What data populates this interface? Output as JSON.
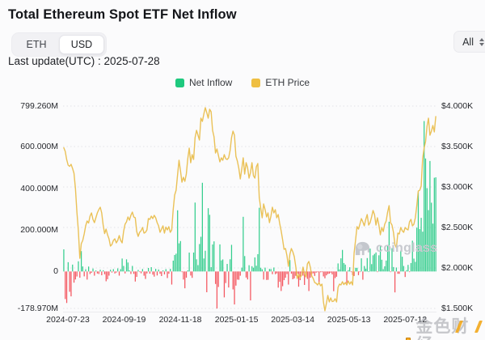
{
  "header": {
    "title": "Total Ethereum Spot ETF Net Inflow",
    "currency_toggle": {
      "options": [
        "ETH",
        "USD"
      ],
      "selected": "USD"
    },
    "range_select": {
      "value": "All"
    },
    "last_update": "Last update(UTC) : 2025-07-28"
  },
  "legend": [
    {
      "label": "Net Inflow",
      "color": "#1EC97E"
    },
    {
      "label": "ETH Price",
      "color": "#EFBF42"
    }
  ],
  "watermarks": {
    "coinglass": "coinglass",
    "golden_finance": "金色财经"
  },
  "chart_data": {
    "type": "bar+line",
    "title": "Total Ethereum Spot ETF Net Inflow",
    "x_start_date": "2024-07-23",
    "x_end_date": "2025-07-28",
    "grid": "horizontal-dotted",
    "legend_position": "top-center",
    "left_axis": {
      "unit": "USD millions",
      "max": 799.26,
      "min": -178.97,
      "ticks": [
        {
          "label": "799.260M",
          "value": 799.26
        },
        {
          "label": "600.000M",
          "value": 600
        },
        {
          "label": "400.000M",
          "value": 400
        },
        {
          "label": "200.000M",
          "value": 200
        },
        {
          "label": "0",
          "value": 0
        },
        {
          "label": "-178.970M",
          "value": -178.97
        }
      ]
    },
    "right_axis": {
      "unit": "USD",
      "max": 4000,
      "min": 1500,
      "ticks": [
        {
          "label": "$4.000K",
          "value": 4000
        },
        {
          "label": "$3.500K",
          "value": 3500
        },
        {
          "label": "$3.000K",
          "value": 3000
        },
        {
          "label": "$2.500K",
          "value": 2500
        },
        {
          "label": "$2.000K",
          "value": 2000
        },
        {
          "label": "$1.500K",
          "value": 1500
        }
      ]
    },
    "x_ticks": [
      {
        "label": "2024-07-23",
        "pos": 0.013
      },
      {
        "label": "2024-09-19",
        "pos": 0.1635
      },
      {
        "label": "2024-11-18",
        "pos": 0.314
      },
      {
        "label": "2025-01-15",
        "pos": 0.4645
      },
      {
        "label": "2025-03-14",
        "pos": 0.615
      },
      {
        "label": "2025-05-13",
        "pos": 0.7655
      },
      {
        "label": "2025-07-12",
        "pos": 0.916
      }
    ],
    "series": [
      {
        "name": "Net Inflow",
        "type": "bar",
        "unit": "USD M",
        "color_pos": "#35CE8E",
        "color_neg": "#F4555E",
        "values": [
          106.8,
          -133.3,
          -152.3,
          44.8,
          -98.3,
          -120.3,
          33.2,
          -54.0,
          -38.7,
          -24.3,
          49.1,
          -30.2,
          98.4,
          24.3,
          -23.7,
          10.8,
          -39.2,
          23.8,
          -12.4,
          -6.5,
          14.3,
          -20.3,
          4.7,
          -9.6,
          -12.2,
          8.4,
          -18.3,
          5.9,
          -13.5,
          -47.4,
          -37.5,
          -20.1,
          8.6,
          -5.2,
          11.4,
          -9.7,
          -5.4,
          15.1,
          -20.1,
          11.2,
          62.5,
          26.8,
          -9.4,
          58.7,
          43.2,
          5.8,
          -12.1,
          26.9,
          -11.6,
          -48.6,
          -26.2,
          7.4,
          -3.2,
          -8.7,
          11.8,
          -20.4,
          -36.1,
          -9.3,
          17.1,
          -10.5,
          20.8,
          -15.3,
          -24.9,
          12.7,
          -19.4,
          9.6,
          -10.9,
          -22.1,
          5.4,
          -14.2,
          11.3,
          -31.8,
          -10.9,
          12.6,
          -63.3,
          52.3,
          79.7,
          85.9,
          295.5,
          135.9,
          146.9,
          -3.2,
          -39.1,
          -81.3,
          -30.2,
          5.2,
          91.2,
          -19.7,
          -30.8,
          91.4,
          332.9,
          58.8,
          30.7,
          132.7,
          167.7,
          428.5,
          62.7,
          100.2,
          -100.4,
          305.7,
          273.7,
          20.9,
          130.4,
          145.4,
          -60.5,
          -178.97,
          -75.1,
          130.8,
          53.6,
          58.1,
          -125.2,
          -56.1,
          36.4,
          -77.5,
          58.9,
          128.7,
          -86.8,
          -159.4,
          -68.4,
          -39.4,
          -40.2,
          -20.5,
          18.6,
          264.1,
          74.4,
          -29.2,
          -38.4,
          30.2,
          -139.8,
          25.5,
          18.3,
          67.8,
          27.8,
          83.6,
          307.8,
          18.1,
          10.7,
          -39.2,
          18.6,
          -40.9,
          -40.4,
          12.1,
          11.7,
          -13.1,
          19.2,
          -13.1,
          -8.9,
          -78.1,
          -50.1,
          -94.3,
          -71.2,
          -41.9,
          -30.3,
          -12.5,
          -63.3,
          55.3,
          -10.4,
          -37.6,
          -33.5,
          -21.1,
          -10.3,
          -73.6,
          -41.9,
          -9.2,
          -20.1,
          -65.1,
          -12.3,
          -35.9,
          -94.5,
          -30.2,
          -12.1,
          -8.7,
          -21.6,
          -6.0,
          -3.6,
          -51.3,
          -3.7,
          -2.1,
          -23.9,
          -32.9,
          -18.8,
          -12.2,
          -10.4,
          -6.1,
          -14.2,
          -95.4,
          -32.1,
          -25.4,
          38.8,
          10.2,
          63.5,
          104.1,
          40.7,
          33.2,
          -56.4,
          6.5,
          20.4,
          -2.3,
          -17.7,
          -21.8,
          17.6,
          17.6,
          -17.6,
          -2.5,
          63.5,
          -39.8,
          26.5,
          13.5,
          64.8,
          0.3,
          110.5,
          35.4,
          78.2,
          84.9,
          91.9,
          -2.9,
          78.2,
          125.0,
          56.8,
          11.3,
          25.3,
          52.7,
          124.1,
          240.3,
          -2.1,
          112.3,
          21.4,
          -101.1,
          19.1,
          -11.1,
          -11.3,
          100.7,
          71.3,
          26.4,
          -26.7,
          6.6,
          31.8,
          -1.8,
          40.7,
          148.6,
          62.1,
          46.6,
          211.3,
          383.1,
          204.8,
          259.0,
          192.3,
          726.7,
          546.0,
          402.5,
          296.6,
          533.8,
          332.2,
          231.2,
          452.7,
          455.0
        ]
      },
      {
        "name": "ETH Price",
        "type": "line",
        "unit": "USD",
        "color": "#EAC157",
        "values": [
          3485,
          3440,
          3338,
          3270,
          3255,
          3280,
          3230,
          3170,
          2980,
          2690,
          2460,
          2119,
          2300,
          2340,
          2420,
          2520,
          2580,
          2555,
          2640,
          2680,
          2600,
          2560,
          2620,
          2680,
          2720,
          2750,
          2680,
          2530,
          2425,
          2480,
          2410,
          2360,
          2270,
          2290,
          2340,
          2360,
          2310,
          2340,
          2400,
          2340,
          2310,
          2450,
          2540,
          2570,
          2630,
          2590,
          2650,
          2690,
          2630,
          2620,
          2450,
          2390,
          2440,
          2460,
          2500,
          2430,
          2440,
          2470,
          2610,
          2600,
          2640,
          2610,
          2650,
          2620,
          2560,
          2520,
          2440,
          2480,
          2520,
          2430,
          2505,
          2470,
          2510,
          2440,
          2470,
          2720,
          2900,
          2960,
          3150,
          3330,
          3200,
          3060,
          3120,
          3070,
          3160,
          3350,
          3480,
          3300,
          3400,
          3340,
          3610,
          3700,
          3640,
          3580,
          3850,
          3810,
          3900,
          3980,
          3920,
          3850,
          3960,
          3930,
          3700,
          3620,
          3420,
          3470,
          3390,
          3310,
          3360,
          3330,
          3400,
          3350,
          3340,
          3360,
          3450,
          3610,
          3690,
          3640,
          3380,
          3320,
          3230,
          3100,
          3220,
          3360,
          3160,
          3300,
          3240,
          3110,
          3180,
          3300,
          3140,
          3110,
          3250,
          3290,
          2870,
          2740,
          2620,
          2790,
          2720,
          2630,
          2680,
          2560,
          2640,
          2750,
          2680,
          2720,
          2620,
          2660,
          2550,
          2460,
          2350,
          2230,
          2240,
          2150,
          2020,
          2170,
          2240,
          2200,
          2140,
          2020,
          1870,
          1920,
          1880,
          1910,
          2010,
          1930,
          1890,
          2050,
          2080,
          2010,
          1900,
          1870,
          1820,
          1810,
          1790,
          1820,
          1780,
          1800,
          1580,
          1471,
          1560,
          1660,
          1580,
          1630,
          1585,
          1590,
          1620,
          1580,
          1760,
          1800,
          1790,
          1830,
          1795,
          1820,
          1790,
          1840,
          1800,
          1830,
          1790,
          2180,
          2340,
          2510,
          2480,
          2540,
          2610,
          2570,
          2520,
          2600,
          2660,
          2530,
          2560,
          2630,
          2710,
          2660,
          2530,
          2620,
          2530,
          2410,
          2500,
          2450,
          2540,
          2580,
          2690,
          2770,
          2560,
          2530,
          2440,
          2290,
          2250,
          2430,
          2420,
          2500,
          2460,
          2440,
          2500,
          2480,
          2470,
          2570,
          2600,
          2520,
          2540,
          2620,
          2770,
          2950,
          2960,
          3010,
          3350,
          3480,
          3560,
          3750,
          3850,
          3640,
          3690,
          3760,
          3680,
          3870
        ]
      }
    ]
  }
}
